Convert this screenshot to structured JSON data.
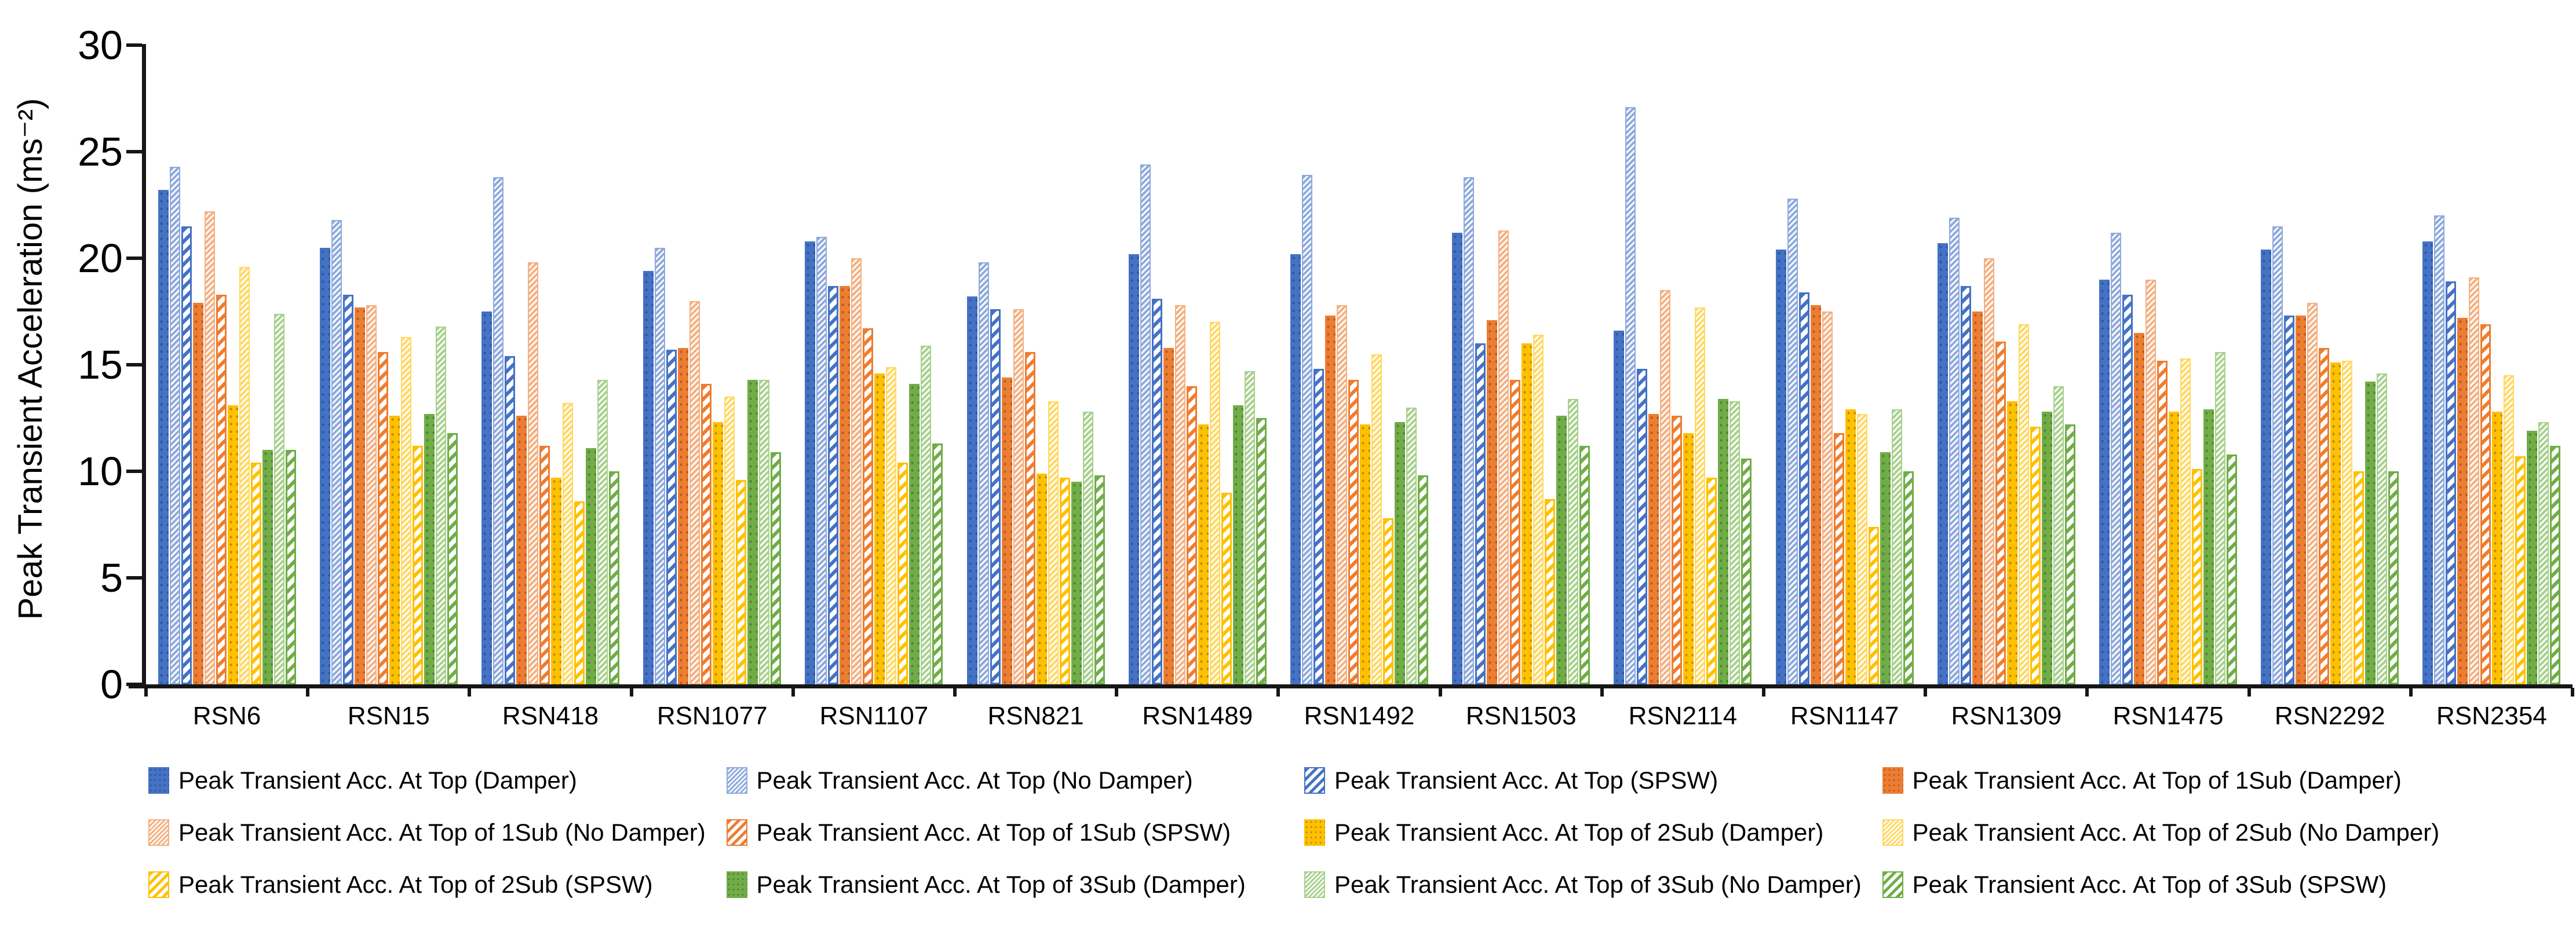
{
  "chart_data": {
    "type": "bar",
    "title": "",
    "xlabel": "",
    "ylabel": "Peak Transient Acceleration (ms⁻²)",
    "ylim": [
      0,
      30
    ],
    "yticks": [
      0,
      5,
      10,
      15,
      20,
      25,
      30
    ],
    "grid": false,
    "legend_position": "bottom",
    "categories": [
      "RSN6",
      "RSN15",
      "RSN418",
      "RSN1077",
      "RSN1107",
      "RSN821",
      "RSN1489",
      "RSN1492",
      "RSN1503",
      "RSN2114",
      "RSN1147",
      "RSN1309",
      "RSN1475",
      "RSN2292",
      "RSN2354"
    ],
    "series": [
      {
        "name": "Peak Transient Acc. At Top (Damper)",
        "pattern": "solid",
        "color": "#4472C4",
        "values": [
          23.2,
          20.5,
          17.5,
          19.4,
          20.8,
          18.2,
          20.2,
          20.2,
          21.2,
          16.6,
          20.4,
          20.7,
          19.0,
          20.4,
          20.8
        ]
      },
      {
        "name": "Peak Transient Acc. At Top (No Damper)",
        "pattern": "fine-hatch",
        "color": "#8FAADC",
        "values": [
          24.3,
          21.8,
          23.8,
          20.5,
          21.0,
          19.8,
          24.4,
          23.9,
          23.8,
          27.1,
          22.8,
          21.9,
          21.2,
          21.5,
          22.0
        ]
      },
      {
        "name": "Peak Transient Acc. At Top (SPSW)",
        "pattern": "stripe",
        "color": "#4472C4",
        "values": [
          21.5,
          18.3,
          15.4,
          15.7,
          18.7,
          17.6,
          18.1,
          14.8,
          16.0,
          14.8,
          18.4,
          18.7,
          18.3,
          17.3,
          18.9
        ]
      },
      {
        "name": "Peak Transient Acc. At Top of 1Sub (Damper)",
        "pattern": "solid",
        "color": "#ED7D31",
        "values": [
          17.9,
          17.7,
          12.6,
          15.8,
          18.7,
          14.4,
          15.8,
          17.3,
          17.1,
          12.7,
          17.8,
          17.5,
          16.5,
          17.3,
          17.2
        ]
      },
      {
        "name": "Peak Transient Acc. At Top of 1Sub (No Damper)",
        "pattern": "fine-hatch",
        "color": "#F4B183",
        "values": [
          22.2,
          17.8,
          19.8,
          18.0,
          20.0,
          17.6,
          17.8,
          17.8,
          21.3,
          18.5,
          17.5,
          20.0,
          19.0,
          17.9,
          19.1
        ]
      },
      {
        "name": "Peak Transient Acc. At Top of 1Sub (SPSW)",
        "pattern": "stripe",
        "color": "#ED7D31",
        "values": [
          18.3,
          15.6,
          11.2,
          14.1,
          16.7,
          15.6,
          14.0,
          14.3,
          14.3,
          12.6,
          11.8,
          16.1,
          15.2,
          15.8,
          16.9
        ]
      },
      {
        "name": "Peak Transient Acc. At Top of 2Sub (Damper)",
        "pattern": "solid",
        "color": "#FFC000",
        "values": [
          13.1,
          12.6,
          9.7,
          12.3,
          14.6,
          9.9,
          12.2,
          12.2,
          16.0,
          11.8,
          12.9,
          13.3,
          12.8,
          15.1,
          12.8
        ]
      },
      {
        "name": "Peak Transient Acc. At Top of 2Sub (No Damper)",
        "pattern": "fine-hatch",
        "color": "#FFD966",
        "values": [
          19.6,
          16.3,
          13.2,
          13.5,
          14.9,
          13.3,
          17.0,
          15.5,
          16.4,
          17.7,
          12.7,
          16.9,
          15.3,
          15.2,
          14.5
        ]
      },
      {
        "name": "Peak Transient Acc. At Top of 2Sub (SPSW)",
        "pattern": "stripe",
        "color": "#FFC000",
        "values": [
          10.4,
          11.2,
          8.6,
          9.6,
          10.4,
          9.7,
          9.0,
          7.8,
          8.7,
          9.7,
          7.4,
          12.1,
          10.1,
          10.0,
          10.7
        ]
      },
      {
        "name": "Peak Transient Acc. At Top of 3Sub (Damper)",
        "pattern": "solid",
        "color": "#70AD47",
        "values": [
          11.0,
          12.7,
          11.1,
          14.3,
          14.1,
          9.5,
          13.1,
          12.3,
          12.6,
          13.4,
          10.9,
          12.8,
          12.9,
          14.2,
          11.9
        ]
      },
      {
        "name": "Peak Transient Acc. At Top of 3Sub (No Damper)",
        "pattern": "fine-hatch",
        "color": "#A9D18E",
        "values": [
          17.4,
          16.8,
          14.3,
          14.3,
          15.9,
          12.8,
          14.7,
          13.0,
          13.4,
          13.3,
          12.9,
          14.0,
          15.6,
          14.6,
          12.3
        ]
      },
      {
        "name": "Peak Transient Acc. At Top of 3Sub (SPSW)",
        "pattern": "stripe",
        "color": "#70AD47",
        "values": [
          11.0,
          11.8,
          10.0,
          10.9,
          11.3,
          9.8,
          12.5,
          9.8,
          11.2,
          10.6,
          10.0,
          12.2,
          10.8,
          10.0,
          11.2
        ]
      }
    ]
  }
}
